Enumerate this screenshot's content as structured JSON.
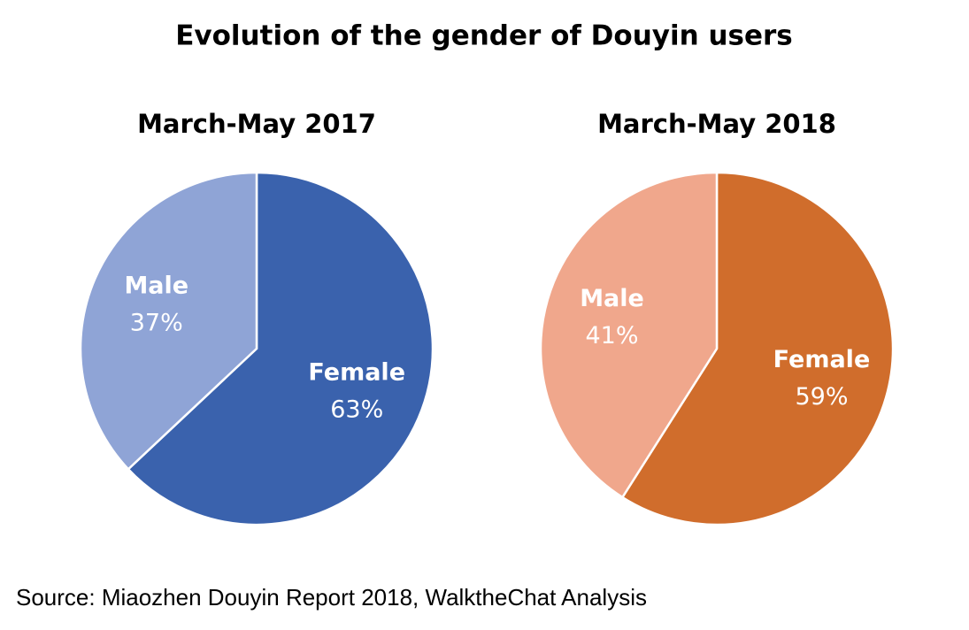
{
  "title": "Evolution of the gender of Douyin users",
  "source": "Source: Miaozhen Douyin Report 2018, WalktheChat Analysis",
  "chart_data": [
    {
      "type": "pie",
      "title": "March-May 2017",
      "categories": [
        "Female",
        "Male"
      ],
      "values": [
        63,
        37
      ],
      "value_labels": [
        "63%",
        "37%"
      ],
      "colors": [
        "#3a62ad",
        "#8fa4d6"
      ]
    },
    {
      "type": "pie",
      "title": "March-May 2018",
      "categories": [
        "Female",
        "Male"
      ],
      "values": [
        59,
        41
      ],
      "value_labels": [
        "59%",
        "41%"
      ],
      "colors": [
        "#d06d2c",
        "#f0a78c"
      ]
    }
  ]
}
